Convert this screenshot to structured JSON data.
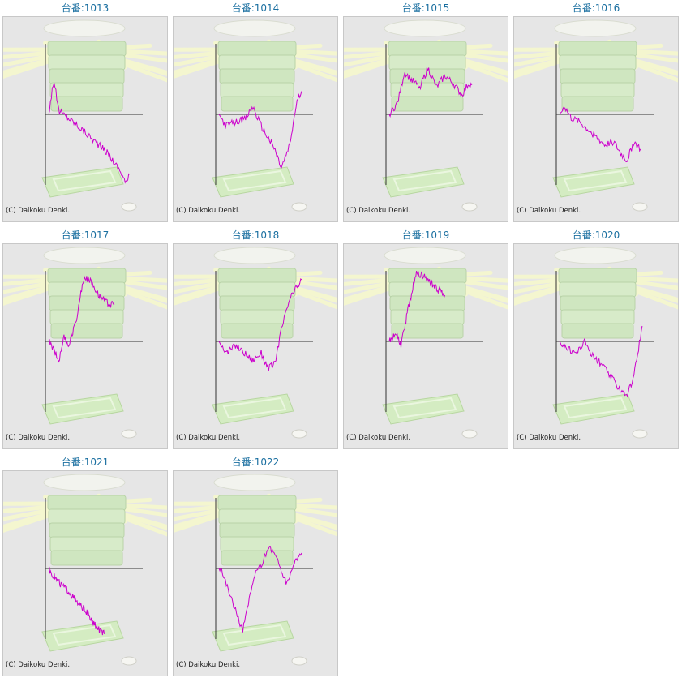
{
  "copyright": "(C) Daikoku Denki.",
  "colors": {
    "line": "#cc00cc",
    "axis": "#333333",
    "title": "#1a6fa0",
    "panel_bg": "#e6e6e6"
  },
  "chart_data": [
    {
      "type": "line",
      "title": "台番:1013",
      "trend": [
        [
          0,
          0
        ],
        [
          0.06,
          0.45
        ],
        [
          0.12,
          0.05
        ],
        [
          0.3,
          -0.1
        ],
        [
          0.5,
          -0.3
        ],
        [
          0.7,
          -0.5
        ],
        [
          0.86,
          -0.75
        ],
        [
          0.92,
          -0.9
        ],
        [
          0.96,
          -0.78
        ]
      ]
    },
    {
      "type": "line",
      "title": "台番:1014",
      "trend": [
        [
          0,
          0
        ],
        [
          0.08,
          -0.15
        ],
        [
          0.2,
          -0.1
        ],
        [
          0.32,
          -0.05
        ],
        [
          0.4,
          0.1
        ],
        [
          0.5,
          -0.15
        ],
        [
          0.58,
          -0.3
        ],
        [
          0.66,
          -0.45
        ],
        [
          0.74,
          -0.7
        ],
        [
          0.84,
          -0.4
        ],
        [
          0.92,
          0.15
        ],
        [
          0.98,
          0.3
        ]
      ]
    },
    {
      "type": "line",
      "title": "台番:1015",
      "trend": [
        [
          0,
          0
        ],
        [
          0.1,
          0.15
        ],
        [
          0.18,
          0.55
        ],
        [
          0.26,
          0.45
        ],
        [
          0.36,
          0.35
        ],
        [
          0.46,
          0.6
        ],
        [
          0.56,
          0.35
        ],
        [
          0.66,
          0.5
        ],
        [
          0.76,
          0.4
        ],
        [
          0.86,
          0.25
        ],
        [
          0.94,
          0.4
        ],
        [
          0.98,
          0.38
        ]
      ]
    },
    {
      "type": "line",
      "title": "台番:1016",
      "trend": [
        [
          0,
          0
        ],
        [
          0.06,
          0.1
        ],
        [
          0.14,
          -0.05
        ],
        [
          0.24,
          -0.1
        ],
        [
          0.34,
          -0.2
        ],
        [
          0.44,
          -0.3
        ],
        [
          0.54,
          -0.4
        ],
        [
          0.64,
          -0.35
        ],
        [
          0.72,
          -0.5
        ],
        [
          0.8,
          -0.6
        ],
        [
          0.88,
          -0.35
        ],
        [
          0.96,
          -0.45
        ]
      ]
    },
    {
      "type": "line",
      "title": "台番:1017",
      "trend": [
        [
          0,
          0
        ],
        [
          0.06,
          -0.1
        ],
        [
          0.12,
          -0.25
        ],
        [
          0.18,
          0.05
        ],
        [
          0.24,
          -0.05
        ],
        [
          0.32,
          0.25
        ],
        [
          0.42,
          0.85
        ],
        [
          0.52,
          0.75
        ],
        [
          0.6,
          0.6
        ],
        [
          0.7,
          0.5
        ],
        [
          0.78,
          0.48
        ]
      ]
    },
    {
      "type": "line",
      "title": "台番:1018",
      "trend": [
        [
          0,
          0
        ],
        [
          0.1,
          -0.15
        ],
        [
          0.2,
          -0.05
        ],
        [
          0.3,
          -0.15
        ],
        [
          0.4,
          -0.25
        ],
        [
          0.5,
          -0.15
        ],
        [
          0.58,
          -0.35
        ],
        [
          0.66,
          -0.3
        ],
        [
          0.74,
          0.15
        ],
        [
          0.84,
          0.55
        ],
        [
          0.98,
          0.8
        ]
      ]
    },
    {
      "type": "line",
      "title": "台番:1019",
      "trend": [
        [
          0,
          0
        ],
        [
          0.08,
          0.1
        ],
        [
          0.14,
          -0.05
        ],
        [
          0.22,
          0.4
        ],
        [
          0.32,
          0.9
        ],
        [
          0.4,
          0.85
        ],
        [
          0.5,
          0.75
        ],
        [
          0.6,
          0.65
        ],
        [
          0.66,
          0.6
        ]
      ]
    },
    {
      "type": "line",
      "title": "台番:1020",
      "trend": [
        [
          0,
          0
        ],
        [
          0.1,
          -0.1
        ],
        [
          0.2,
          -0.15
        ],
        [
          0.3,
          0.0
        ],
        [
          0.4,
          -0.2
        ],
        [
          0.5,
          -0.3
        ],
        [
          0.6,
          -0.45
        ],
        [
          0.7,
          -0.6
        ],
        [
          0.8,
          -0.7
        ],
        [
          0.88,
          -0.45
        ],
        [
          0.98,
          0.2
        ]
      ]
    },
    {
      "type": "line",
      "title": "台番:1021",
      "trend": [
        [
          0,
          0
        ],
        [
          0.06,
          -0.1
        ],
        [
          0.14,
          -0.2
        ],
        [
          0.24,
          -0.3
        ],
        [
          0.34,
          -0.45
        ],
        [
          0.44,
          -0.55
        ],
        [
          0.52,
          -0.7
        ],
        [
          0.6,
          -0.8
        ],
        [
          0.66,
          -0.85
        ]
      ]
    },
    {
      "type": "line",
      "title": "台番:1022",
      "trend": [
        [
          0,
          0
        ],
        [
          0.06,
          -0.1
        ],
        [
          0.12,
          -0.3
        ],
        [
          0.2,
          -0.55
        ],
        [
          0.28,
          -0.8
        ],
        [
          0.34,
          -0.5
        ],
        [
          0.42,
          -0.1
        ],
        [
          0.5,
          0.05
        ],
        [
          0.6,
          0.3
        ],
        [
          0.7,
          0.1
        ],
        [
          0.8,
          -0.2
        ],
        [
          0.9,
          0.1
        ],
        [
          0.98,
          0.2
        ]
      ]
    }
  ]
}
